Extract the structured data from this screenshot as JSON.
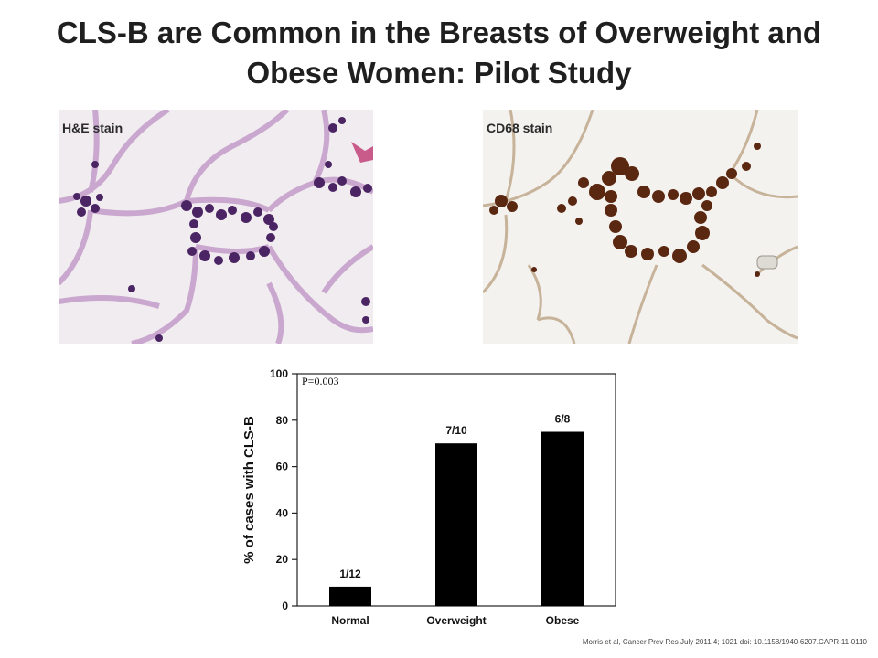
{
  "slide": {
    "title_line1": "CLS-B are Common in the Breasts of Overweight and",
    "title_line2": "Obese Women: Pilot Study",
    "citation": "Morris et al, Cancer Prev Res July 2011 4; 1021 doi: 10.1158/1940-6207.CAPR-11-0110"
  },
  "images": [
    {
      "label": "H&E stain",
      "stain_color": "#5b2a6e",
      "background": "#f1ecef"
    },
    {
      "label": "CD68 stain",
      "stain_color": "#5a2710",
      "background": "#f4f2ee"
    }
  ],
  "chart_data": {
    "type": "bar",
    "categories": [
      "Normal",
      "Overweight",
      "Obese"
    ],
    "values": [
      8.3,
      70,
      75
    ],
    "data_labels": [
      "1/12",
      "7/10",
      "6/8"
    ],
    "title": "",
    "xlabel": "",
    "ylabel": "% of cases with CLS-B",
    "ylim": [
      0,
      100
    ],
    "yticks": [
      0,
      20,
      40,
      60,
      80,
      100
    ],
    "annotation": "P=0.003",
    "grid": false,
    "bar_color": "#000000"
  }
}
